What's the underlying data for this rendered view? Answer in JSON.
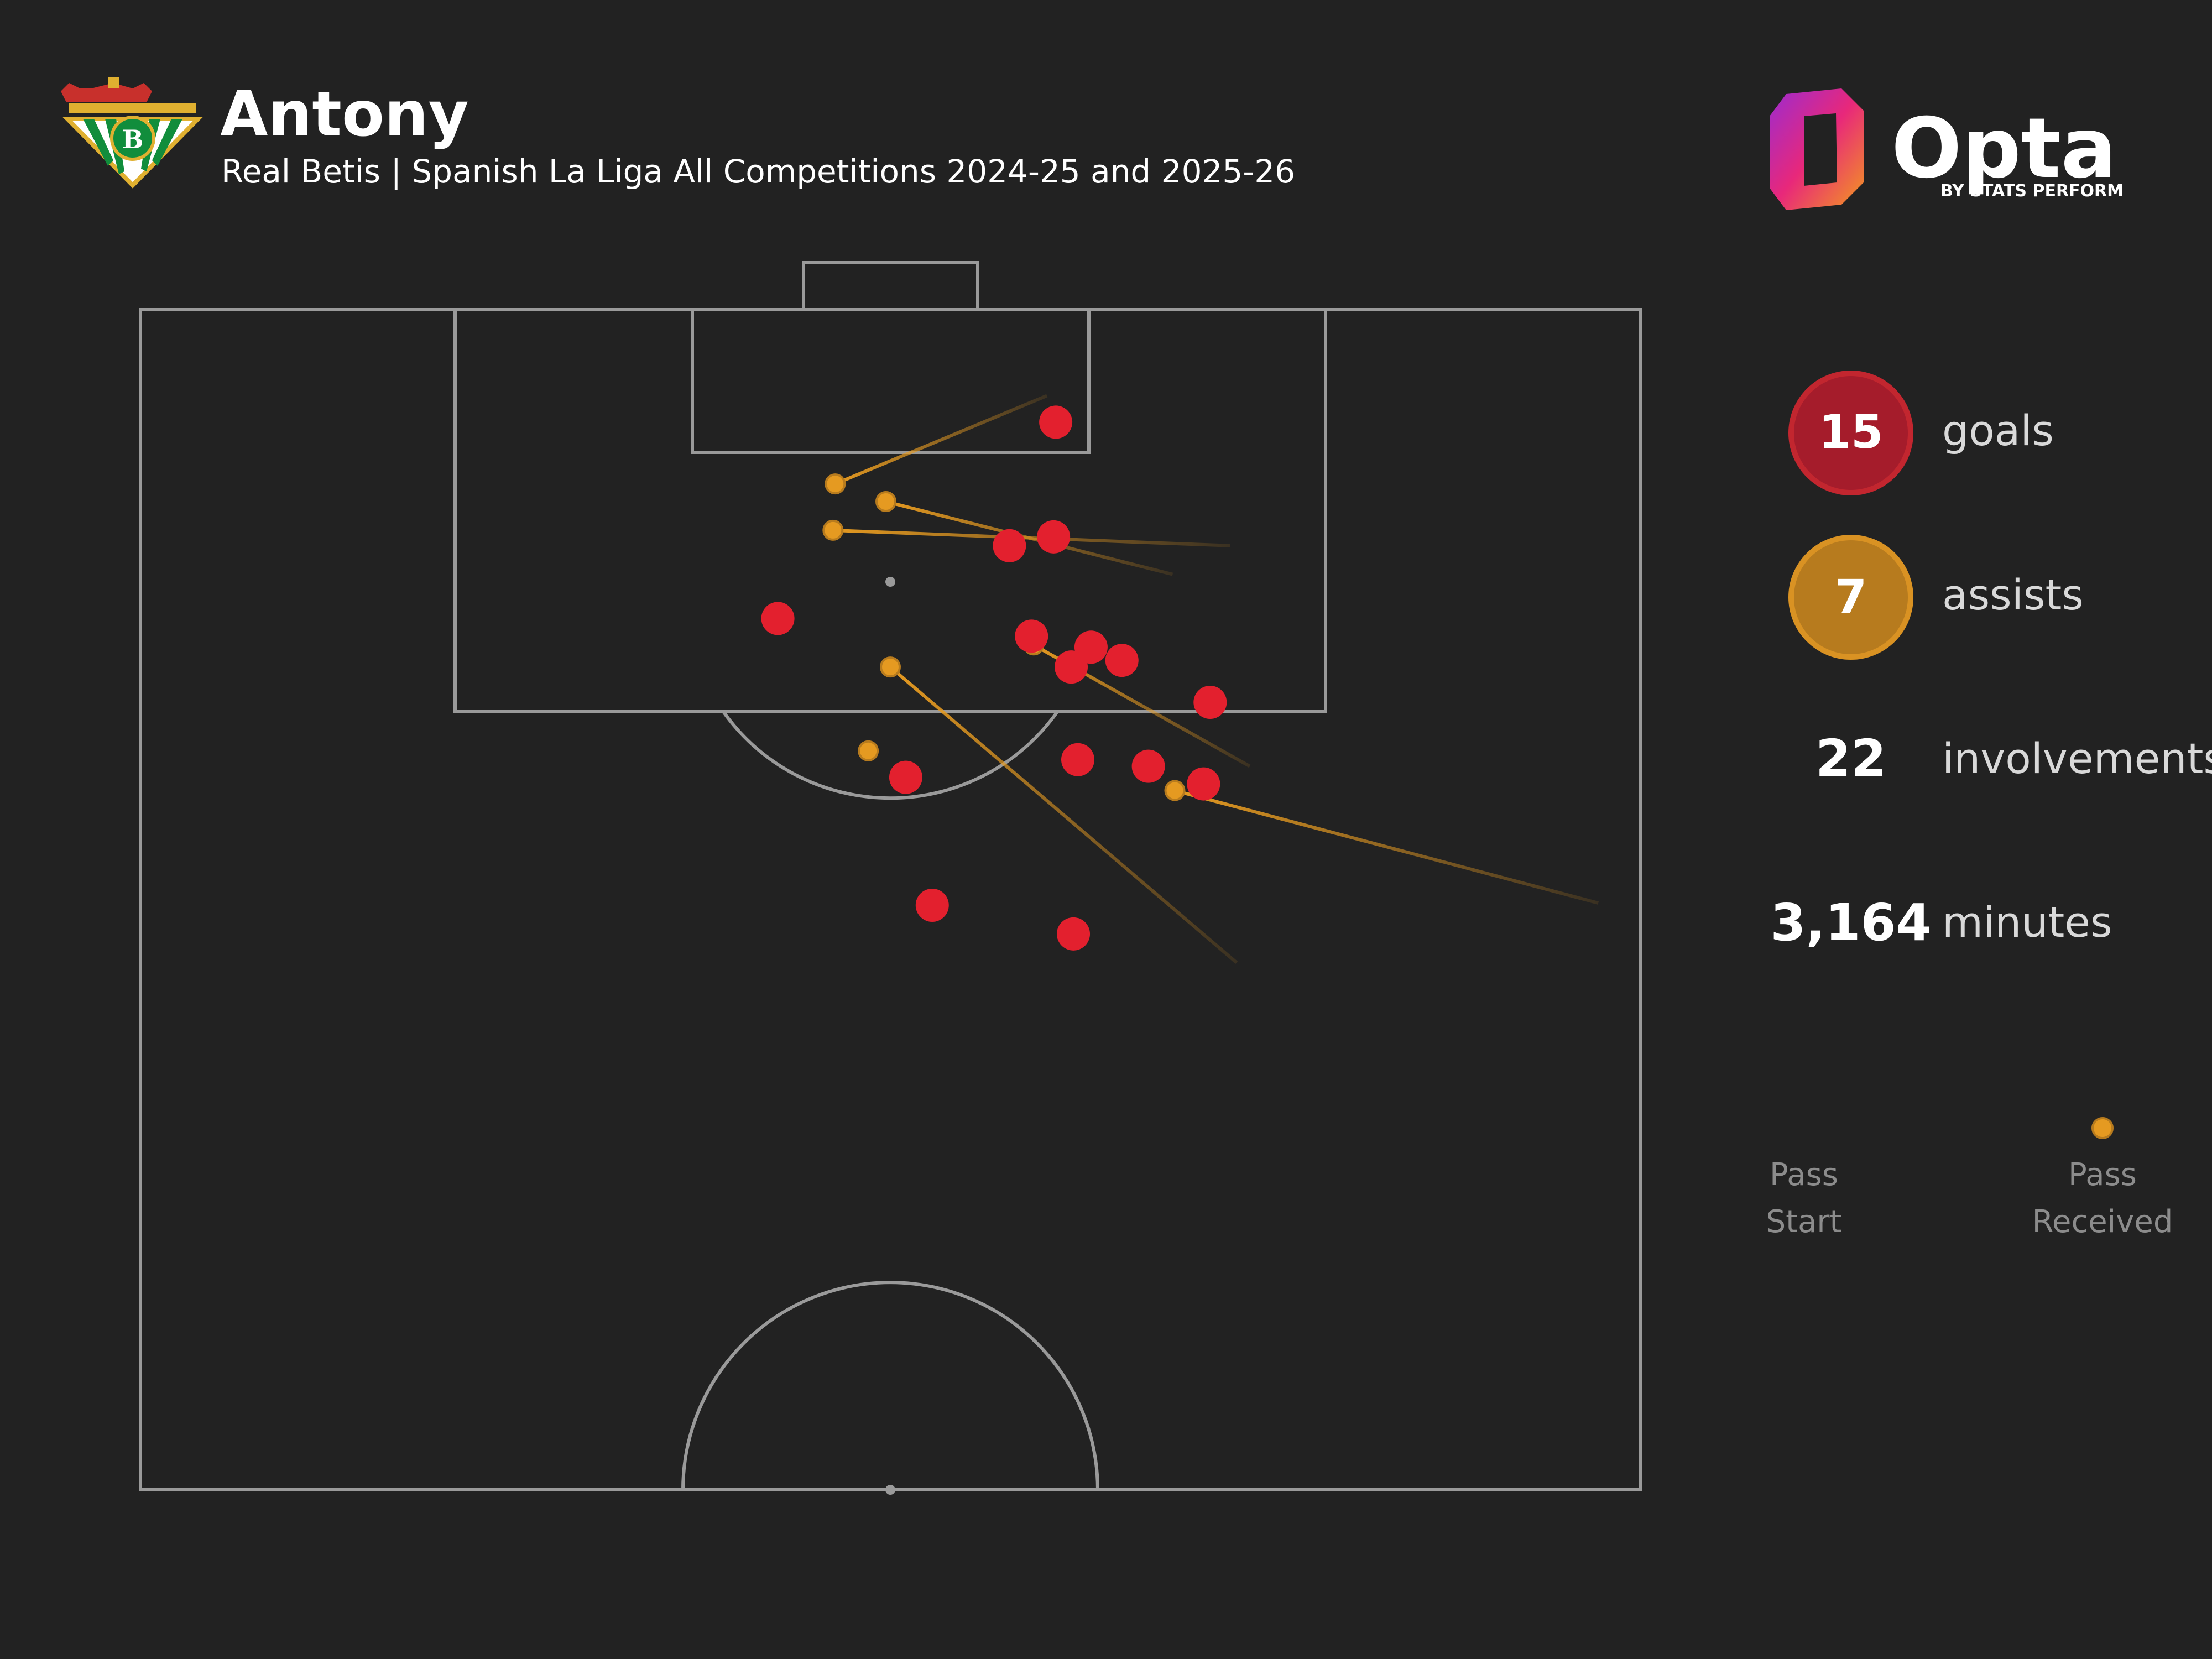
{
  "header": {
    "player_name": "Antony",
    "subtitle": "Real Betis | Spanish La Liga All Competitions 2024-25 and 2025-26",
    "club_crest_icon": "real-betis-crest-icon"
  },
  "branding": {
    "logo_icon": "opta-logo-icon",
    "name": "Opta",
    "byline": "BY STATS PERFORM"
  },
  "stats": {
    "goals": {
      "value": "15",
      "label": "goals",
      "color": "#a51c2b"
    },
    "assists": {
      "value": "7",
      "label": "assists",
      "color": "#b77b1e"
    },
    "involvements": {
      "value": "22",
      "label": "involvements"
    },
    "minutes": {
      "value": "3,164",
      "label": "minutes"
    }
  },
  "legend": {
    "start_line1": "Pass",
    "start_line2": "Start",
    "end_line1": "Pass",
    "end_line2": "Received"
  },
  "colors": {
    "background": "#222222",
    "pitch_lines": "#9a9a9a",
    "goal_marker": "#e3202e",
    "assist_line": "#e59a21"
  },
  "chart_data": {
    "type": "scatter",
    "x_range": [
      0,
      68
    ],
    "y_range": [
      0,
      53.5
    ],
    "axis_orientation": "x across pitch width (left to right), y distance from goal line toward halfway line",
    "goals": [
      {
        "x": 41.5,
        "y": 5.1
      },
      {
        "x": 39.4,
        "y": 10.7
      },
      {
        "x": 41.4,
        "y": 10.3
      },
      {
        "x": 28.9,
        "y": 14.0
      },
      {
        "x": 40.4,
        "y": 14.8
      },
      {
        "x": 43.1,
        "y": 15.3
      },
      {
        "x": 44.5,
        "y": 15.9
      },
      {
        "x": 42.2,
        "y": 16.2
      },
      {
        "x": 48.5,
        "y": 17.8
      },
      {
        "x": 34.7,
        "y": 21.2
      },
      {
        "x": 42.5,
        "y": 20.4
      },
      {
        "x": 45.7,
        "y": 20.7
      },
      {
        "x": 48.2,
        "y": 21.5
      },
      {
        "x": 35.9,
        "y": 27.0
      },
      {
        "x": 42.3,
        "y": 28.3
      }
    ],
    "assists": [
      {
        "start_x": 41.1,
        "start_y": 3.9,
        "end_x": 31.5,
        "end_y": 7.9
      },
      {
        "start_x": 46.8,
        "start_y": 12.0,
        "end_x": 33.8,
        "end_y": 8.7
      },
      {
        "start_x": 49.4,
        "start_y": 10.7,
        "end_x": 31.4,
        "end_y": 10.0
      },
      {
        "start_x": 50.3,
        "start_y": 20.7,
        "end_x": 40.5,
        "end_y": 15.2
      },
      {
        "start_x": 49.7,
        "start_y": 29.6,
        "end_x": 34.0,
        "end_y": 16.2
      },
      {
        "start_x": 66.1,
        "start_y": 26.9,
        "end_x": 46.9,
        "end_y": 21.8
      },
      {
        "start_x": 33.0,
        "start_y": 20.0,
        "end_x": 33.0,
        "end_y": 20.0
      }
    ]
  }
}
